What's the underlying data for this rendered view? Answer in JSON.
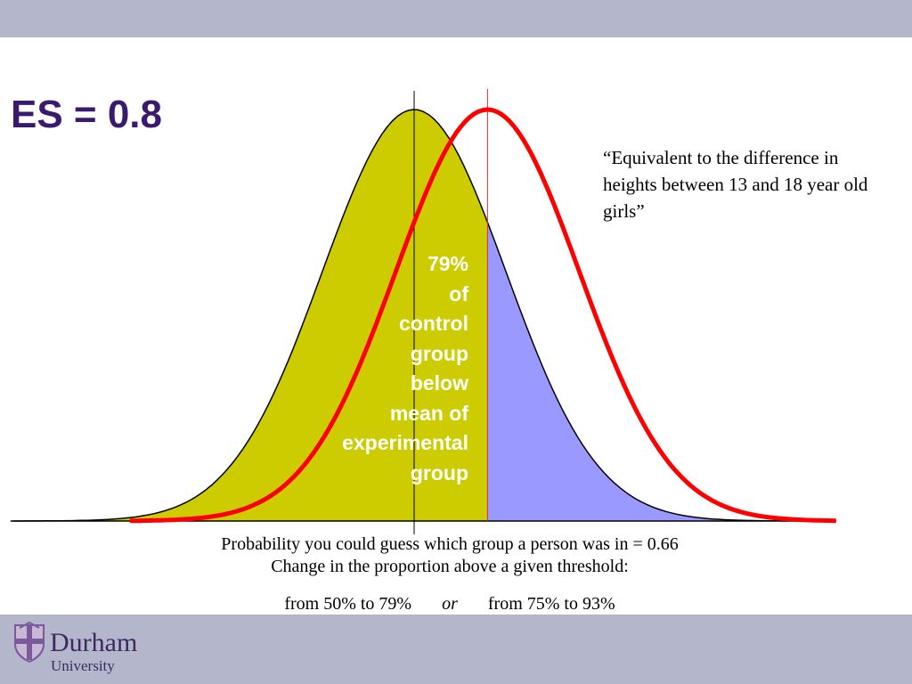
{
  "title": "ES = 0.8",
  "quote": "“Equivalent to the difference in heights between 13 and 18 year old girls”",
  "inner_label_lines": [
    "79%",
    "of",
    "control",
    "group",
    "below",
    "mean of",
    "experimental",
    "group"
  ],
  "captions": {
    "line1": "Probability you could guess which group a person was in = 0.66",
    "line2": "Change in the proportion above a given threshold:",
    "line3_a": "from 50% to 79%",
    "line3_or": "or",
    "line3_b": "from 75% to 93%"
  },
  "logo": {
    "name": "Durham",
    "sub": "University"
  },
  "colors": {
    "bar": "#b4b6cc",
    "title": "#3a1a6e",
    "control_left_fill": "#cccc00",
    "control_right_fill": "#9999ff",
    "experimental_curve": "#ff0000",
    "brand": "#3b2a5e"
  },
  "chart_data": {
    "type": "area",
    "effect_size": 0.8,
    "series": [
      {
        "mean": 0,
        "sd": 1
      },
      {
        "mean": 0.8,
        "sd": 1
      }
    ],
    "x_range": [
      -3,
      3
    ],
    "proportion_below_experimental_mean": 0.79,
    "grid": false
  }
}
